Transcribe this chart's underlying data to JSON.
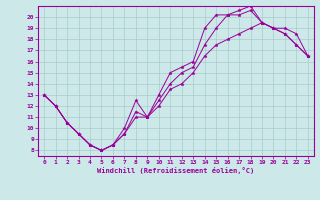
{
  "xlabel": "Windchill (Refroidissement éolien,°C)",
  "xlim": [
    -0.5,
    23.5
  ],
  "ylim": [
    7.5,
    21.0
  ],
  "xticks": [
    0,
    1,
    2,
    3,
    4,
    5,
    6,
    7,
    8,
    9,
    10,
    11,
    12,
    13,
    14,
    15,
    16,
    17,
    18,
    19,
    20,
    21,
    22,
    23
  ],
  "yticks": [
    8,
    9,
    10,
    11,
    12,
    13,
    14,
    15,
    16,
    17,
    18,
    19,
    20
  ],
  "background_color": "#cce8e8",
  "line_color": "#990099",
  "grid_color": "#aacccc",
  "line1_x": [
    0,
    1,
    2,
    3,
    4,
    5,
    5,
    6,
    7,
    8,
    9,
    10,
    11,
    12,
    13,
    14,
    15,
    16,
    17,
    18,
    19,
    20,
    21,
    22,
    23
  ],
  "line1_y": [
    13,
    12,
    10.5,
    9.5,
    8.5,
    8.0,
    8.0,
    8.5,
    9.5,
    11.5,
    11.0,
    12.5,
    14.0,
    15.0,
    15.5,
    17.5,
    19.0,
    20.2,
    20.2,
    20.6,
    19.5,
    19.0,
    19.0,
    18.5,
    16.5
  ],
  "line2_x": [
    0,
    1,
    2,
    3,
    4,
    5,
    6,
    7,
    8,
    9,
    10,
    11,
    12,
    13,
    14,
    15,
    16,
    17,
    18,
    19,
    20,
    21,
    22,
    23
  ],
  "line2_y": [
    13,
    12,
    10.5,
    9.5,
    8.5,
    8.0,
    8.5,
    10.0,
    12.5,
    11.0,
    13.0,
    15.0,
    15.5,
    16.0,
    19.0,
    20.2,
    20.2,
    20.6,
    21.0,
    19.5,
    19.0,
    18.5,
    17.5,
    16.5
  ],
  "line3_x": [
    0,
    1,
    2,
    3,
    4,
    5,
    6,
    7,
    8,
    9,
    10,
    11,
    12,
    13,
    14,
    15,
    16,
    17,
    18,
    19,
    20,
    21,
    22,
    23
  ],
  "line3_y": [
    13,
    12,
    10.5,
    9.5,
    8.5,
    8.0,
    8.5,
    9.5,
    11.0,
    11.0,
    12.0,
    13.5,
    14.0,
    15.0,
    16.5,
    17.5,
    18.0,
    18.5,
    19.0,
    19.5,
    19.0,
    18.5,
    17.5,
    16.5
  ]
}
